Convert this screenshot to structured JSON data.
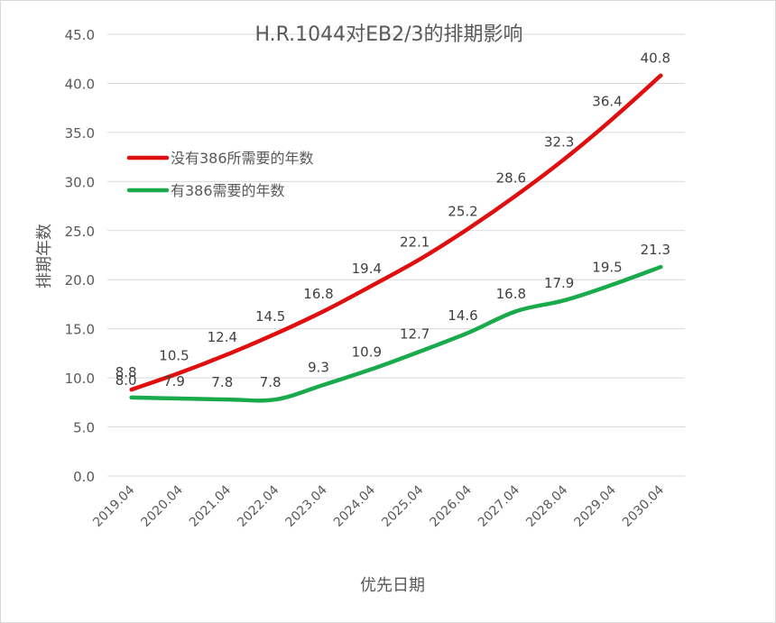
{
  "chart_data": {
    "type": "line",
    "title": "H.R.1044对EB2/3的排期影响",
    "xlabel": "优先日期",
    "ylabel": "排期年数",
    "categories": [
      "2019.04",
      "2020.04",
      "2021.04",
      "2022.04",
      "2023.04",
      "2024.04",
      "2025.04",
      "2026.04",
      "2027.04",
      "2028.04",
      "2029.04",
      "2030.04"
    ],
    "ylim": [
      0,
      45
    ],
    "yticks": [
      "0.0",
      "5.0",
      "10.0",
      "15.0",
      "20.0",
      "25.0",
      "30.0",
      "35.0",
      "40.0",
      "45.0"
    ],
    "grid": true,
    "legend": "top-left",
    "series": [
      {
        "name": "没有386所需要的年数",
        "color": "#e00f0f",
        "values": [
          8.8,
          10.5,
          12.4,
          14.5,
          16.8,
          19.4,
          22.1,
          25.2,
          28.6,
          32.3,
          36.4,
          40.8
        ],
        "labels": [
          "8.8",
          "10.5",
          "12.4",
          "14.5",
          "16.8",
          "19.4",
          "22.1",
          "25.2",
          "28.6",
          "32.3",
          "36.4",
          "40.8"
        ]
      },
      {
        "name": "有386需要的年数",
        "color": "#19ab4b",
        "values": [
          8.0,
          7.9,
          7.8,
          7.8,
          9.3,
          10.9,
          12.7,
          14.6,
          16.8,
          17.9,
          19.5,
          21.3
        ],
        "labels": [
          "8.0",
          "7.9",
          "7.8",
          "7.8",
          "9.3",
          "10.9",
          "12.7",
          "14.6",
          "16.8",
          "17.9",
          "19.5",
          "21.3"
        ]
      }
    ]
  }
}
